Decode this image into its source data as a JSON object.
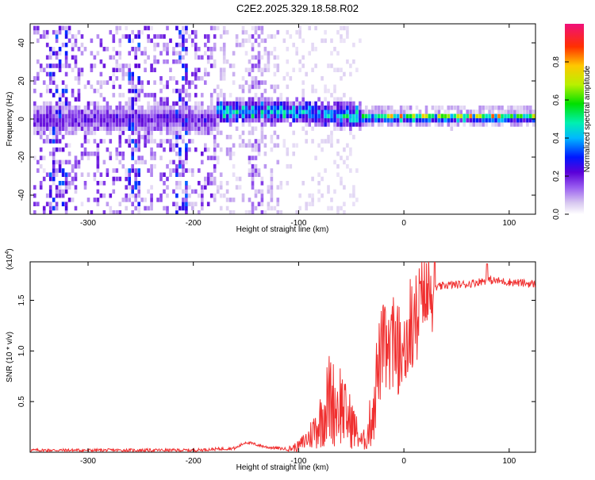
{
  "title": "C2E2.2025.329.18.58.R02",
  "chart_data": [
    {
      "type": "heatmap",
      "xlabel": "Height of straight line (km)",
      "ylabel": "Frequency (Hz)",
      "xlim": [
        -355,
        125
      ],
      "ylim": [
        -50,
        50
      ],
      "xticks": [
        -300,
        -200,
        -100,
        0,
        100
      ],
      "yticks": [
        -40,
        -20,
        0,
        20,
        40
      ],
      "colorbar": {
        "label": "Normalized spectral amplitude",
        "range": [
          0,
          1
        ],
        "ticks": [
          0.0,
          0.2,
          0.4,
          0.6,
          0.8
        ]
      },
      "signal_regions": [
        {
          "x_range": [
            -355,
            -180
          ],
          "description": "diffuse noise, weak signal near 0 Hz"
        },
        {
          "x_range": [
            -180,
            -40
          ],
          "description": "signal band centred near 0 to 5 Hz, moderate amplitude"
        },
        {
          "x_range": [
            -40,
            125
          ],
          "description": "narrow strong tone near 1 Hz, amplitude 0.6 to 1.0"
        }
      ]
    },
    {
      "type": "line",
      "xlabel": "Height of straight line (km)",
      "ylabel": "SNR (10 * v/v)",
      "y_exponent_label": "(x10",
      "y_exponent_power": "4",
      "xlim": [
        -355,
        125
      ],
      "ylim": [
        0,
        1.88
      ],
      "xticks": [
        -300,
        -200,
        -100,
        0,
        100
      ],
      "yticks": [
        0.5,
        1.0,
        1.5
      ],
      "series": [
        {
          "name": "SNR",
          "color": "#f03030",
          "x": [
            -355,
            -300,
            -250,
            -200,
            -160,
            -150,
            -130,
            -110,
            -100,
            -90,
            -80,
            -70,
            -65,
            -60,
            -55,
            -50,
            -45,
            -40,
            -35,
            -30,
            -25,
            -20,
            -15,
            -10,
            -5,
            0,
            5,
            10,
            15,
            20,
            25,
            30,
            40,
            60,
            80,
            100,
            125
          ],
          "y": [
            0.02,
            0.02,
            0.02,
            0.02,
            0.04,
            0.1,
            0.05,
            0.03,
            0.06,
            0.15,
            0.3,
            0.55,
            0.45,
            0.5,
            0.35,
            0.3,
            0.2,
            0.1,
            0.15,
            0.4,
            0.8,
            1.05,
            0.95,
            1.1,
            1.0,
            1.05,
            1.15,
            1.3,
            1.45,
            1.52,
            1.58,
            1.62,
            1.65,
            1.66,
            1.7,
            1.68,
            1.66
          ]
        }
      ]
    }
  ]
}
